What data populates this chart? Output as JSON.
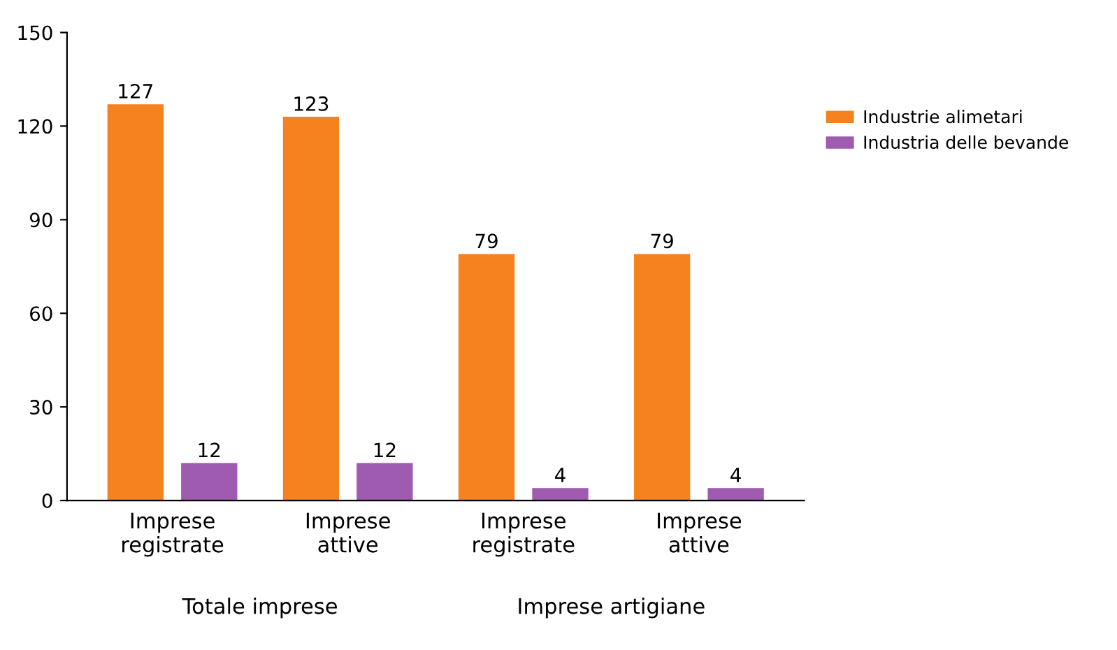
{
  "chart_data": {
    "type": "bar",
    "categories": [
      "Imprese\nregistrate",
      "Imprese\nattive",
      "Imprese\nregistrate",
      "Imprese\nattive"
    ],
    "series": [
      {
        "name": "Industrie alimetari",
        "color": "#f5821f",
        "values": [
          127,
          123,
          79,
          79
        ]
      },
      {
        "name": "Industria delle bevande",
        "color": "#9e5bb0",
        "values": [
          12,
          12,
          4,
          4
        ]
      }
    ],
    "ylim": [
      0,
      150
    ],
    "yticks": [
      0,
      30,
      60,
      90,
      120,
      150
    ],
    "grid": false,
    "legend": "right",
    "data_labels": true,
    "annotations": [
      "Totale imprese",
      "Imprese artigiane"
    ]
  }
}
